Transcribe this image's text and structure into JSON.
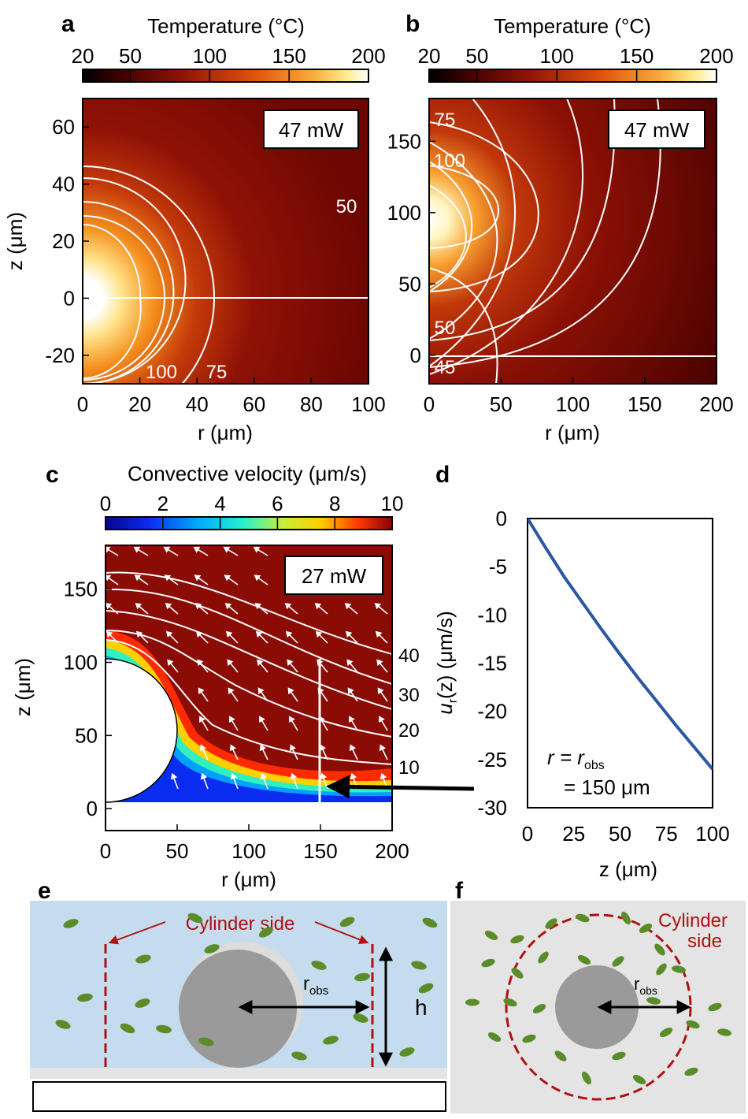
{
  "panel_letters": {
    "a": "a",
    "b": "b",
    "c": "c",
    "d": "d",
    "e": "e",
    "f": "f"
  },
  "colors": {
    "hot_dark": "#3a0000",
    "hot_mid": "#8b0f05",
    "hot_orange": "#f0701a",
    "hot_yellow": "#ffe27a",
    "jet_blue": "#0b1ea8",
    "jet_red": "#8b0b05",
    "line_blue": "#2b57a3",
    "fluid": "#c4dcee",
    "substrate": "#e4e4e4",
    "sphere": "#9a9a9a",
    "bacteria": "#5b8c2a",
    "dashed": "#b01010"
  },
  "chart_data": [
    {
      "id": "a",
      "type": "heatmap",
      "colorbar": {
        "label": "Temperature (°C)",
        "ticks": [
          "20",
          "50",
          "100",
          "150",
          "200"
        ],
        "range": [
          20,
          200
        ]
      },
      "power_label": "47 mW",
      "xlabel": "r (μm)",
      "ylabel": "z (μm)",
      "xlim": [
        0,
        100
      ],
      "ylim": [
        -30,
        70
      ],
      "xticks": [
        "0",
        "20",
        "40",
        "60",
        "80",
        "100"
      ],
      "yticks": [
        "-20",
        "0",
        "20",
        "40",
        "60"
      ],
      "contour_labels": [
        "50",
        "100",
        "75"
      ]
    },
    {
      "id": "b",
      "type": "heatmap",
      "colorbar": {
        "label": "Temperature (°C)",
        "ticks": [
          "20",
          "50",
          "100",
          "150",
          "200"
        ],
        "range": [
          20,
          200
        ]
      },
      "power_label": "47 mW",
      "xlabel": "r (μm)",
      "ylabel": "",
      "xlim": [
        0,
        200
      ],
      "ylim": [
        -20,
        180
      ],
      "xticks": [
        "0",
        "50",
        "100",
        "150",
        "200"
      ],
      "yticks": [
        "0",
        "50",
        "100",
        "150"
      ],
      "contour_labels": [
        "75",
        "100",
        "50",
        "45"
      ]
    },
    {
      "id": "c",
      "type": "heatmap",
      "colorbar": {
        "label": "Convective velocity (μm/s)",
        "ticks": [
          "0",
          "2",
          "4",
          "6",
          "8",
          "10"
        ],
        "range": [
          0,
          10
        ]
      },
      "power_label": "27 mW",
      "xlabel": "r (μm)",
      "ylabel": "z (μm)",
      "xlim": [
        0,
        200
      ],
      "ylim": [
        -15,
        180
      ],
      "xticks": [
        "0",
        "50",
        "100",
        "150",
        "200"
      ],
      "yticks": [
        "0",
        "50",
        "100",
        "150"
      ],
      "right_labels": [
        "40",
        "30",
        "20",
        "10"
      ],
      "observation_r": 150
    },
    {
      "id": "d",
      "type": "line",
      "xlabel": "z (μm)",
      "ylabel": "u_r(z) (μm/s)",
      "ylabel_main": "u",
      "ylabel_sub": "r",
      "ylabel_rest": "(z) (μm/s)",
      "xlim": [
        0,
        100
      ],
      "ylim": [
        -30,
        0
      ],
      "xticks": [
        "0",
        "25",
        "50",
        "75",
        "100"
      ],
      "yticks": [
        "0",
        "-5",
        "-10",
        "-15",
        "-20",
        "-25",
        "-30"
      ],
      "annotation_line1": "r = r",
      "annotation_sub": "obs",
      "annotation_line2": "= 150 μm",
      "series": [
        {
          "x": [
            0,
            10,
            20,
            30,
            40,
            50,
            60,
            70,
            80,
            90,
            100
          ],
          "values": [
            0,
            -3.1,
            -6.1,
            -8.8,
            -11.5,
            -14.1,
            -16.6,
            -19.0,
            -21.4,
            -23.7,
            -26.0
          ]
        }
      ]
    }
  ],
  "schematic_e": {
    "label": "Cylinder side",
    "r_main": "r",
    "r_sub": "obs",
    "h": "h"
  },
  "schematic_f": {
    "label_line1": "Cylinder",
    "label_line2": "side",
    "r_main": "r",
    "r_sub": "obs"
  }
}
